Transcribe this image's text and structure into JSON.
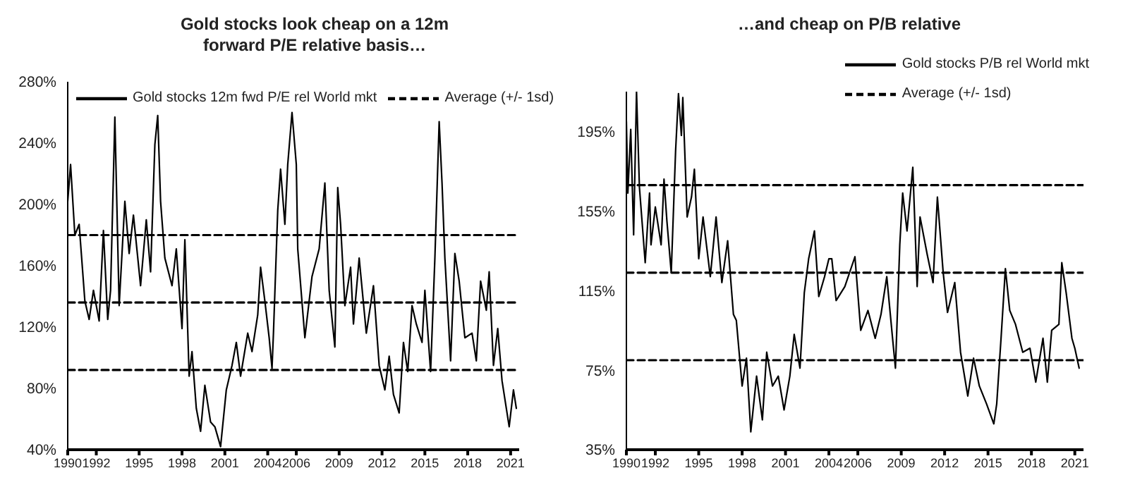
{
  "chart_data": [
    {
      "type": "line",
      "title": "Gold stocks look cheap on a 12m forward P/E relative basis…",
      "legend": "top",
      "marker": "none",
      "xlim": [
        1990,
        2021.6
      ],
      "xticks": [
        1990,
        1992,
        1995,
        1998,
        2001,
        2004,
        2006,
        2009,
        2012,
        2015,
        2018,
        2021
      ],
      "ylim": [
        40,
        280
      ],
      "yticks": [
        {
          "value": 40,
          "label": "40%"
        },
        {
          "value": 80,
          "label": "80%"
        },
        {
          "value": 120,
          "label": "120%"
        },
        {
          "value": 160,
          "label": "160%"
        },
        {
          "value": 200,
          "label": "200%"
        },
        {
          "value": 240,
          "label": "240%"
        },
        {
          "value": 280,
          "label": "280%"
        }
      ],
      "series": [
        {
          "name": "Gold stocks 12m fwd P/E rel World mkt",
          "color": "#000000",
          "line_style": "solid",
          "x": [
            1990.0,
            1990.2,
            1990.5,
            1990.8,
            1991.2,
            1991.5,
            1991.8,
            1992.2,
            1992.5,
            1992.8,
            1993.0,
            1993.3,
            1993.6,
            1994.0,
            1994.3,
            1994.6,
            1995.1,
            1995.5,
            1995.8,
            1996.1,
            1996.3,
            1996.5,
            1996.8,
            1997.3,
            1997.6,
            1998.0,
            1998.2,
            1998.5,
            1998.7,
            1999.0,
            1999.3,
            1999.6,
            2000.0,
            2000.3,
            2000.7,
            2001.1,
            2001.5,
            2001.8,
            2002.1,
            2002.6,
            2002.9,
            2003.3,
            2003.5,
            2003.8,
            2004.1,
            2004.3,
            2004.4,
            2004.7,
            2004.9,
            2005.2,
            2005.4,
            2005.7,
            2006.0,
            2006.1,
            2006.6,
            2007.1,
            2007.6,
            2008.0,
            2008.3,
            2008.7,
            2008.9,
            2009.1,
            2009.4,
            2009.8,
            2010.0,
            2010.4,
            2010.9,
            2011.4,
            2011.8,
            2012.2,
            2012.5,
            2012.8,
            2013.2,
            2013.5,
            2013.8,
            2014.1,
            2014.4,
            2014.8,
            2015.0,
            2015.4,
            2015.7,
            2016.0,
            2016.2,
            2016.4,
            2016.8,
            2017.1,
            2017.4,
            2017.8,
            2018.3,
            2018.6,
            2018.9,
            2019.3,
            2019.5,
            2019.8,
            2020.1,
            2020.4,
            2020.9,
            2021.2,
            2021.4
          ],
          "values": [
            202,
            226,
            180,
            187,
            137,
            125,
            144,
            124,
            183,
            125,
            144,
            257,
            134,
            202,
            168,
            193,
            147,
            190,
            156,
            239,
            258,
            202,
            165,
            147,
            171,
            119,
            177,
            88,
            104,
            67,
            52,
            82,
            58,
            55,
            42,
            79,
            95,
            110,
            88,
            116,
            104,
            128,
            159,
            137,
            113,
            93,
            116,
            196,
            223,
            187,
            226,
            260,
            226,
            171,
            113,
            153,
            171,
            214,
            144,
            107,
            211,
            187,
            134,
            159,
            122,
            165,
            116,
            147,
            95,
            79,
            101,
            76,
            64,
            110,
            91,
            134,
            122,
            110,
            144,
            91,
            165,
            254,
            214,
            165,
            98,
            168,
            150,
            113,
            116,
            98,
            150,
            131,
            156,
            95,
            119,
            85,
            55,
            79,
            67
          ]
        },
        {
          "name": "Average (+/- 1sd)",
          "color": "#000000",
          "line_style": "dashed",
          "x": [
            1990,
            2021.6
          ],
          "values": [
            136,
            136
          ]
        },
        {
          "color": "#000000",
          "line_style": "dashed",
          "x": [
            1990,
            2021.6
          ],
          "values": [
            180,
            180
          ]
        },
        {
          "color": "#000000",
          "line_style": "dashed",
          "x": [
            1990,
            2021.6
          ],
          "values": [
            92,
            92
          ]
        }
      ]
    },
    {
      "type": "line",
      "title": "…and cheap on P/B relative",
      "legend": "top right",
      "marker": "none",
      "xlim": [
        1990,
        2021.6
      ],
      "xticks": [
        1990,
        1992,
        1995,
        1998,
        2001,
        2004,
        2006,
        2009,
        2012,
        2015,
        2018,
        2021
      ],
      "ylim": [
        35,
        215
      ],
      "yticks": [
        {
          "value": 35,
          "label": "35%"
        },
        {
          "value": 75,
          "label": "75%"
        },
        {
          "value": 115,
          "label": "115%"
        },
        {
          "value": 155,
          "label": "155%"
        },
        {
          "value": 195,
          "label": "195%"
        }
      ],
      "series": [
        {
          "name": "Gold stocks P/B rel World mkt",
          "color": "#000000",
          "line_style": "solid",
          "x": [
            1990.0,
            1990.1,
            1990.3,
            1990.5,
            1990.7,
            1990.9,
            1991.3,
            1991.6,
            1991.7,
            1992.0,
            1992.4,
            1992.6,
            1992.8,
            1993.1,
            1993.4,
            1993.6,
            1993.8,
            1993.9,
            1994.2,
            1994.5,
            1994.7,
            1995.0,
            1995.3,
            1995.8,
            1996.2,
            1996.6,
            1997.0,
            1997.4,
            1997.6,
            1998.0,
            1998.3,
            1998.6,
            1999.0,
            1999.4,
            1999.7,
            2000.1,
            2000.5,
            2000.9,
            2001.3,
            2001.6,
            2002.0,
            2002.3,
            2002.6,
            2003.0,
            2003.3,
            2003.7,
            2004.0,
            2004.2,
            2004.5,
            2005.1,
            2005.8,
            2006.2,
            2006.7,
            2007.2,
            2007.6,
            2008.0,
            2008.4,
            2008.6,
            2008.9,
            2009.1,
            2009.4,
            2009.8,
            2010.1,
            2010.3,
            2010.8,
            2011.2,
            2011.5,
            2011.9,
            2012.2,
            2012.7,
            2013.1,
            2013.6,
            2014.0,
            2014.4,
            2014.9,
            2015.4,
            2015.6,
            2015.9,
            2016.2,
            2016.5,
            2016.9,
            2017.4,
            2017.9,
            2018.3,
            2018.8,
            2019.1,
            2019.4,
            2019.9,
            2020.1,
            2020.4,
            2020.8,
            2021.0,
            2021.3
          ],
          "values": [
            200,
            164,
            196,
            143,
            215,
            167,
            129,
            164,
            138,
            157,
            138,
            171,
            150,
            124,
            185,
            214,
            193,
            212,
            152,
            162,
            176,
            131,
            152,
            122,
            152,
            119,
            140,
            103,
            100,
            67,
            81,
            44,
            72,
            50,
            84,
            67,
            72,
            55,
            72,
            93,
            76,
            114,
            131,
            145,
            112,
            122,
            131,
            131,
            110,
            117,
            132,
            95,
            105,
            91,
            103,
            122,
            91,
            76,
            138,
            164,
            145,
            177,
            117,
            152,
            133,
            119,
            162,
            124,
            104,
            119,
            84,
            62,
            81,
            67,
            58,
            48,
            58,
            91,
            126,
            105,
            98,
            84,
            86,
            69,
            91,
            69,
            95,
            98,
            129,
            114,
            91,
            86,
            76
          ]
        },
        {
          "name": "Average (+/- 1sd)",
          "color": "#000000",
          "line_style": "dashed",
          "x": [
            1990,
            2021.6
          ],
          "values": [
            124,
            124
          ]
        },
        {
          "color": "#000000",
          "line_style": "dashed",
          "x": [
            1990,
            2021.6
          ],
          "values": [
            168,
            168
          ]
        },
        {
          "color": "#000000",
          "line_style": "dashed",
          "x": [
            1990,
            2021.6
          ],
          "values": [
            80,
            80
          ]
        }
      ]
    }
  ]
}
